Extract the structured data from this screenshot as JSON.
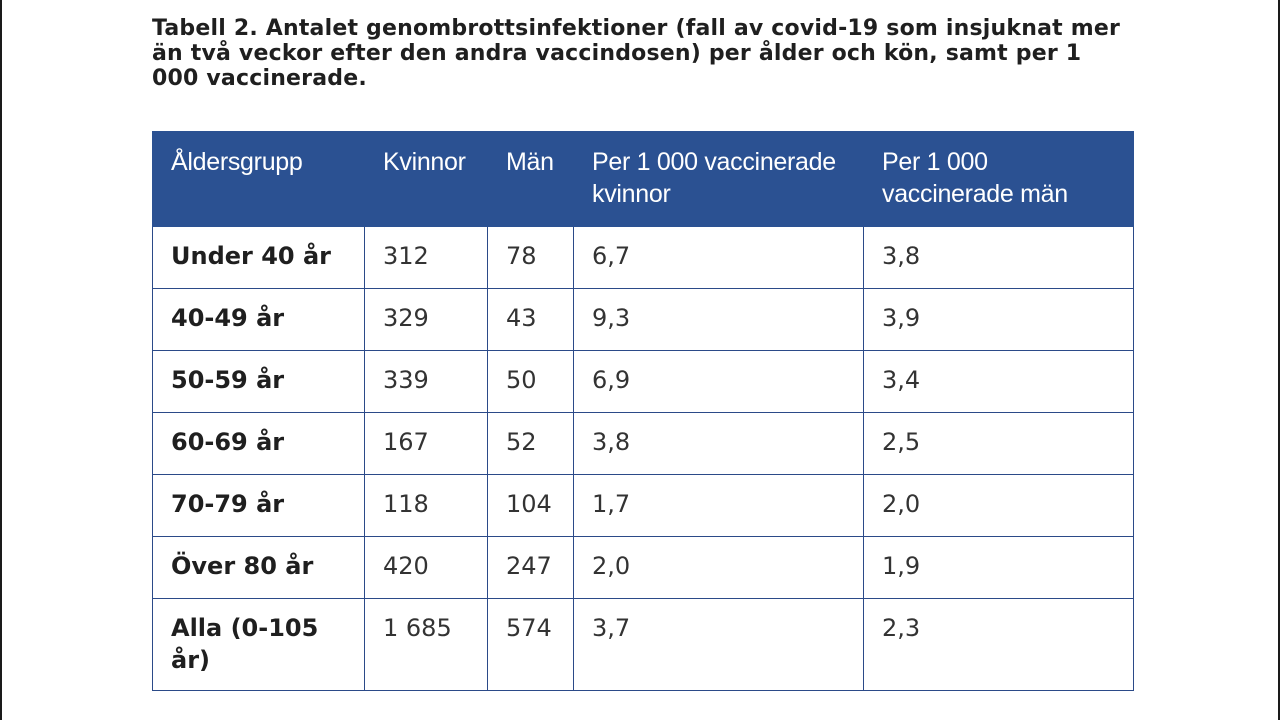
{
  "caption": "Tabell 2. Antalet genombrottsinfektioner (fall av covid-19 som insjuknat mer än två veckor efter den andra vaccindosen) per ålder och kön, samt per 1 000 vaccinerade.",
  "table": {
    "headers": [
      "Åldersgrupp",
      "Kvinnor",
      "Män",
      "Per 1 000 vaccinerade kvinnor",
      "Per 1 000 vaccinerade män"
    ],
    "rows": [
      [
        "Under 40 år",
        "312",
        "78",
        "6,7",
        "3,8"
      ],
      [
        "40-49 år",
        "329",
        "43",
        "9,3",
        "3,9"
      ],
      [
        "50-59 år",
        "339",
        "50",
        "6,9",
        "3,4"
      ],
      [
        "60-69 år",
        "167",
        "52",
        "3,8",
        "2,5"
      ],
      [
        "70-79 år",
        "118",
        "104",
        "1,7",
        "2,0"
      ],
      [
        "Över 80 år",
        "420",
        "247",
        "2,0",
        "1,9"
      ],
      [
        "Alla (0-105 år)",
        "1 685",
        "574",
        "3,7",
        "2,3"
      ]
    ]
  },
  "colors": {
    "header_background": "#2b5192",
    "border": "#2b4a88"
  }
}
